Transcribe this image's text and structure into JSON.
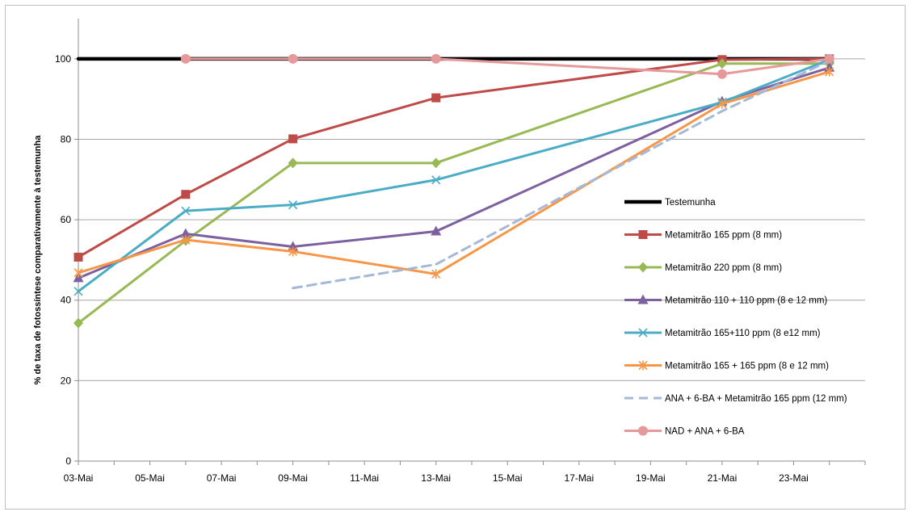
{
  "chart_data": {
    "type": "line",
    "title": "",
    "xlabel": "",
    "ylabel": "% de taxa de fotossíntese comparativamente à testemunha",
    "x_ticks": [
      "03-Mai",
      "05-Mai",
      "07-Mai",
      "09-Mai",
      "11-Mai",
      "13-Mai",
      "15-Mai",
      "17-Mai",
      "19-Mai",
      "21-Mai",
      "23-Mai"
    ],
    "x_range": [
      "03-Mai",
      "25-Mai"
    ],
    "ylim": [
      0,
      110
    ],
    "y_ticks": [
      0,
      20,
      40,
      60,
      80,
      100
    ],
    "grid": "horizontal",
    "legend_position": "right",
    "series": [
      {
        "name": "Testemunha",
        "color": "#000000",
        "marker": "none",
        "dash": false,
        "x": [
          "03-Mai",
          "06-Mai",
          "09-Mai",
          "13-Mai",
          "21-Mai",
          "24-Mai"
        ],
        "y": [
          100,
          100,
          100,
          100,
          100,
          100
        ]
      },
      {
        "name": "Metamitrão 165 ppm (8 mm)",
        "color": "#be4b48",
        "marker": "square",
        "dash": false,
        "x": [
          "03-Mai",
          "06-Mai",
          "09-Mai",
          "13-Mai",
          "21-Mai",
          "24-Mai"
        ],
        "y": [
          50.7,
          66.3,
          80.1,
          90.3,
          99.8,
          100
        ]
      },
      {
        "name": "Metamitrão 220 ppm (8 mm)",
        "color": "#98b954",
        "marker": "diamond",
        "dash": false,
        "x": [
          "03-Mai",
          "06-Mai",
          "09-Mai",
          "13-Mai",
          "21-Mai",
          "24-Mai"
        ],
        "y": [
          34.3,
          54.8,
          74.1,
          74.1,
          98.8,
          98.8
        ]
      },
      {
        "name": "Metamitrão 110 + 110 ppm (8 e 12 mm)",
        "color": "#7d60a0",
        "marker": "triangle",
        "dash": false,
        "x": [
          "03-Mai",
          "06-Mai",
          "09-Mai",
          "13-Mai",
          "21-Mai",
          "24-Mai"
        ],
        "y": [
          45.5,
          56.5,
          53.3,
          57.1,
          89.4,
          97.8
        ]
      },
      {
        "name": "Metamitrão 165+110 ppm (8 e12 mm)",
        "color": "#4bacc6",
        "marker": "x",
        "dash": false,
        "x": [
          "03-Mai",
          "06-Mai",
          "09-Mai",
          "13-Mai",
          "21-Mai",
          "24-Mai"
        ],
        "y": [
          42.2,
          62.2,
          63.7,
          69.9,
          89.2,
          99.8
        ]
      },
      {
        "name": "Metamitrão 165 + 165 ppm (8 e 12 mm)",
        "color": "#f79646",
        "marker": "star",
        "dash": false,
        "x": [
          "03-Mai",
          "06-Mai",
          "09-Mai",
          "13-Mai",
          "21-Mai",
          "24-Mai"
        ],
        "y": [
          46.8,
          55.0,
          52.1,
          46.5,
          88.8,
          96.8
        ]
      },
      {
        "name": "ANA + 6-BA + Metamitrão 165 ppm (12 mm)",
        "color": "#a5b8d8",
        "marker": "none",
        "dash": true,
        "x": [
          "09-Mai",
          "13-Mai",
          "21-Mai",
          "24-Mai"
        ],
        "y": [
          43.0,
          48.9,
          87.0,
          99.5
        ]
      },
      {
        "name": "NAD + ANA + 6-BA",
        "color": "#e6999a",
        "marker": "circle",
        "dash": false,
        "x": [
          "06-Mai",
          "09-Mai",
          "13-Mai",
          "21-Mai",
          "24-Mai"
        ],
        "y": [
          100,
          100,
          100,
          96.2,
          100
        ]
      }
    ]
  }
}
